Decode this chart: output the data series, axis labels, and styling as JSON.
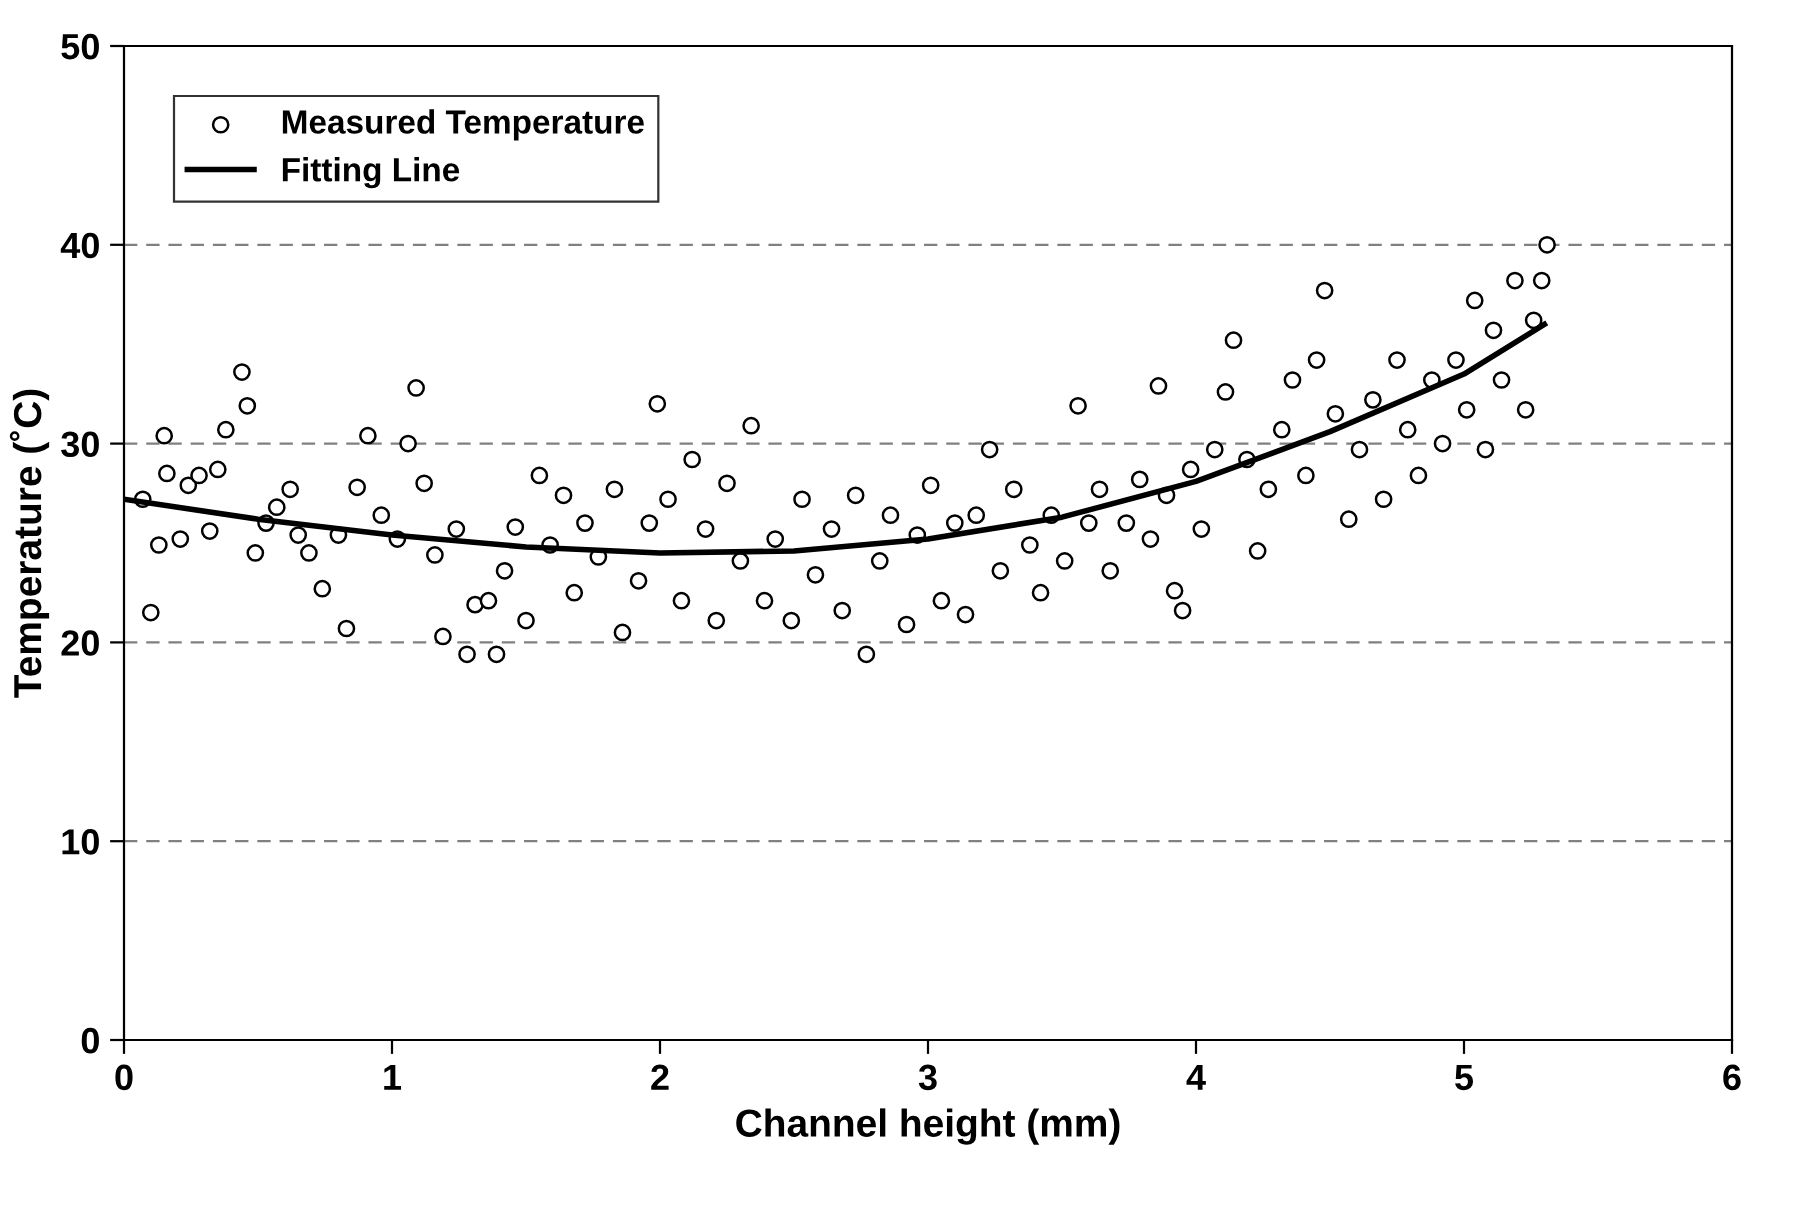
{
  "chart_data": {
    "type": "scatter",
    "xlabel": "Channel height (mm)",
    "ylabel": "Temperature (˚C)",
    "xlim": [
      0,
      6
    ],
    "xticks": [
      0,
      1,
      2,
      3,
      4,
      5,
      6
    ],
    "ylim": [
      0,
      50
    ],
    "yticks": [
      0,
      10,
      20,
      30,
      40,
      50
    ],
    "grid": "y",
    "legend": "top left",
    "series": [
      {
        "name": "Measured Temperature",
        "marker": "circle",
        "color": "#000000",
        "x": [
          0.07,
          0.1,
          0.13,
          0.15,
          0.16,
          0.21,
          0.24,
          0.28,
          0.32,
          0.35,
          0.38,
          0.44,
          0.46,
          0.49,
          0.53,
          0.57,
          0.62,
          0.65,
          0.69,
          0.74,
          0.8,
          0.83,
          0.87,
          0.91,
          0.96,
          1.02,
          1.06,
          1.09,
          1.12,
          1.16,
          1.19,
          1.24,
          1.28,
          1.31,
          1.36,
          1.39,
          1.42,
          1.46,
          1.5,
          1.55,
          1.59,
          1.64,
          1.68,
          1.72,
          1.77,
          1.83,
          1.86,
          1.92,
          1.96,
          1.99,
          2.03,
          2.08,
          2.12,
          2.17,
          2.21,
          2.25,
          2.3,
          2.34,
          2.39,
          2.43,
          2.49,
          2.53,
          2.58,
          2.64,
          2.68,
          2.73,
          2.77,
          2.82,
          2.86,
          2.92,
          2.96,
          3.01,
          3.05,
          3.1,
          3.14,
          3.18,
          3.23,
          3.27,
          3.32,
          3.38,
          3.42,
          3.46,
          3.51,
          3.56,
          3.6,
          3.64,
          3.68,
          3.74,
          3.79,
          3.83,
          3.86,
          3.89,
          3.92,
          3.95,
          3.98,
          4.02,
          4.07,
          4.11,
          4.14,
          4.19,
          4.23,
          4.27,
          4.32,
          4.36,
          4.41,
          4.45,
          4.48,
          4.52,
          4.57,
          4.61,
          4.66,
          4.7,
          4.75,
          4.79,
          4.83,
          4.88,
          4.92,
          4.97,
          5.01,
          5.04,
          5.08,
          5.11,
          5.14,
          5.19,
          5.23,
          5.26,
          5.29,
          5.31
        ],
        "values": [
          27.2,
          21.5,
          24.9,
          30.4,
          28.5,
          25.2,
          27.9,
          28.4,
          25.6,
          28.7,
          30.7,
          33.6,
          31.9,
          24.5,
          26.0,
          26.8,
          27.7,
          25.4,
          24.5,
          22.7,
          25.4,
          20.7,
          27.8,
          30.4,
          26.4,
          25.2,
          30.0,
          32.8,
          28.0,
          24.4,
          20.3,
          25.7,
          19.4,
          21.9,
          22.1,
          19.4,
          23.6,
          25.8,
          21.1,
          28.4,
          24.9,
          27.4,
          22.5,
          26.0,
          24.3,
          27.7,
          20.5,
          23.1,
          26.0,
          32.0,
          27.2,
          22.1,
          29.2,
          25.7,
          21.1,
          28.0,
          24.1,
          30.9,
          22.1,
          25.2,
          21.1,
          27.2,
          23.4,
          25.7,
          21.6,
          27.4,
          19.4,
          24.1,
          26.4,
          20.9,
          25.4,
          27.9,
          22.1,
          26.0,
          21.4,
          26.4,
          29.7,
          23.6,
          27.7,
          24.9,
          22.5,
          26.4,
          24.1,
          31.9,
          26.0,
          27.7,
          23.6,
          26.0,
          28.2,
          25.2,
          32.9,
          27.4,
          22.6,
          21.6,
          28.7,
          25.7,
          29.7,
          32.6,
          35.2,
          29.2,
          24.6,
          27.7,
          30.7,
          33.2,
          28.4,
          34.2,
          37.7,
          31.5,
          26.2,
          29.7,
          32.2,
          27.2,
          34.2,
          30.7,
          28.4,
          33.2,
          30.0,
          34.2,
          31.7,
          37.2,
          29.7,
          35.7,
          33.2,
          38.2,
          31.7,
          36.2,
          38.2,
          40.0
        ]
      },
      {
        "name": "Fitting Line",
        "type": "line",
        "color": "#000000",
        "line_style": "solid",
        "x": [
          0,
          0.5,
          1,
          1.5,
          2,
          2.5,
          3,
          3.5,
          4,
          4.5,
          5,
          5.3
        ],
        "values": [
          27.2,
          26.2,
          25.4,
          24.8,
          24.5,
          24.6,
          25.2,
          26.3,
          28.1,
          30.6,
          33.5,
          36.0
        ]
      }
    ]
  }
}
